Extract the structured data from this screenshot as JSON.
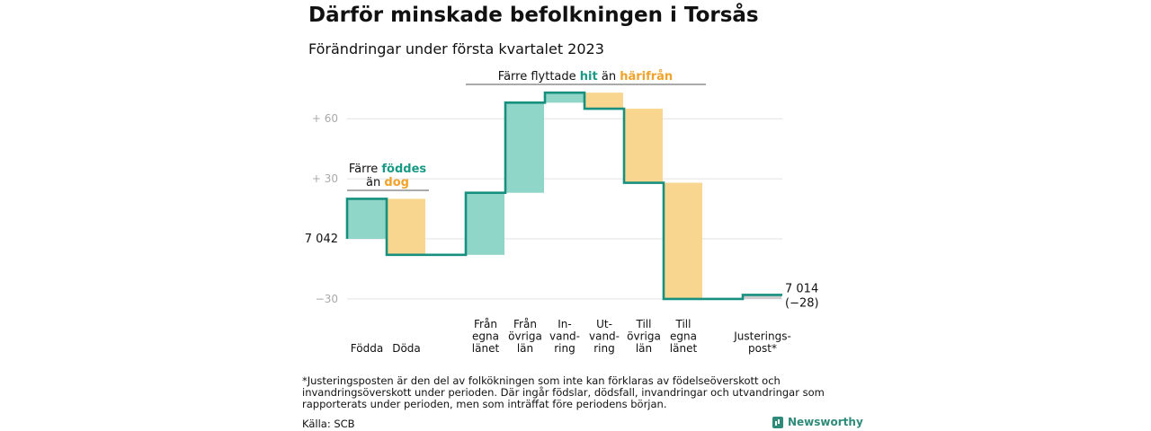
{
  "title": "Därför minskade befolkningen i Torsås",
  "subtitle": "Förändringar under första kvartalet 2023",
  "chart_data": {
    "type": "waterfall",
    "start_value": 7042,
    "start_label": "7 042",
    "end_label_1": "7 014",
    "end_label_2": "(−28)",
    "yticks": [
      {
        "value": 60,
        "label": "+ 60"
      },
      {
        "value": 30,
        "label": "+ 30"
      },
      {
        "value": -30,
        "label": "−30"
      }
    ],
    "steps": [
      {
        "label_lines": [
          "Födda"
        ],
        "delta": 20,
        "kind": "in"
      },
      {
        "label_lines": [
          "Döda"
        ],
        "delta": -28,
        "kind": "out"
      },
      {
        "label_lines": [
          "",
          ""
        ],
        "delta": 0,
        "kind": "gap"
      },
      {
        "label_lines": [
          "Från",
          "egna",
          "länet"
        ],
        "delta": 31,
        "kind": "in"
      },
      {
        "label_lines": [
          "Från",
          "övriga",
          "län"
        ],
        "delta": 45,
        "kind": "in"
      },
      {
        "label_lines": [
          "In-",
          "vand-",
          "ring"
        ],
        "delta": 5,
        "kind": "in"
      },
      {
        "label_lines": [
          "Ut-",
          "vand-",
          "ring"
        ],
        "delta": -8,
        "kind": "out"
      },
      {
        "label_lines": [
          "Till",
          "övriga",
          "län"
        ],
        "delta": -37,
        "kind": "out"
      },
      {
        "label_lines": [
          "Till",
          "egna",
          "länet"
        ],
        "delta": -58,
        "kind": "out"
      },
      {
        "label_lines": [
          "",
          ""
        ],
        "delta": 0,
        "kind": "gap"
      },
      {
        "label_lines": [
          "Justerings-",
          "post*"
        ],
        "delta": 2,
        "kind": "adj"
      }
    ],
    "annotations": [
      {
        "lines": [
          [
            {
              "text": "Färre ",
              "color": "dark"
            },
            {
              "text": "föddes",
              "color": "teal"
            }
          ],
          [
            {
              "text": "än ",
              "color": "dark"
            },
            {
              "text": "dog",
              "color": "orange"
            }
          ]
        ]
      },
      {
        "lines": [
          [
            {
              "text": "Färre flyttade ",
              "color": "dark"
            },
            {
              "text": "hit",
              "color": "teal"
            },
            {
              "text": " än ",
              "color": "dark"
            },
            {
              "text": "härifrån",
              "color": "orange"
            }
          ]
        ]
      }
    ],
    "colors": {
      "in": "#8fd5c8",
      "out": "#f9d68f",
      "adj": "#cccccc",
      "line": "#18907f",
      "teal": "#1a9a85",
      "orange": "#f0a22a",
      "dark": "#111111",
      "grid": "#e2e2e2",
      "tick": "#aaaaaa"
    }
  },
  "footnote": "*Justeringsposten är den del av folkökningen som inte kan förklaras av födelseöverskott och invandringsöverskott under perioden. Där ingår födslar, dödsfall, invandringar och utvandringar som rapporterats under perioden, men som inträffat före periodens början.",
  "source": "Källa: SCB",
  "brand": "Newsworthy"
}
